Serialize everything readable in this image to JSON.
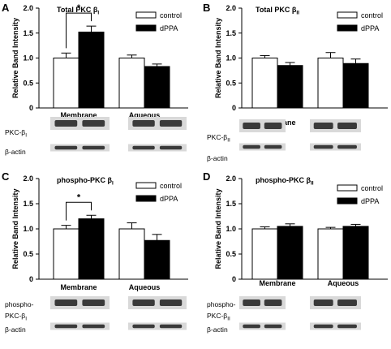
{
  "chart_data": [
    {
      "panel_letter": "A",
      "type": "bar",
      "title": "Total PKC β",
      "title_sub": "I",
      "ylabel": "Relative Band Intensity",
      "ylim": [
        0,
        2.0
      ],
      "yticks": [
        "0",
        "0.5",
        "1.0",
        "1.5",
        "2.0"
      ],
      "categories": [
        "Membrane",
        "Aqueous"
      ],
      "series": [
        {
          "name": "control",
          "values": [
            1.0,
            1.0
          ],
          "errors": [
            0.1,
            0.06
          ]
        },
        {
          "name": "dPPA",
          "values": [
            1.52,
            0.83
          ],
          "errors": [
            0.12,
            0.05
          ]
        }
      ],
      "significance": "*",
      "blot_labels": [
        {
          "text": "PKC-β",
          "sub": "I"
        },
        {
          "text": "β-actin",
          "sub": ""
        }
      ]
    },
    {
      "panel_letter": "B",
      "type": "bar",
      "title": "Total PKC β",
      "title_sub": "II",
      "ylabel": "Relative Band Intensity",
      "ylim": [
        0,
        2.0
      ],
      "yticks": [
        "0",
        "0.5",
        "1.0",
        "1.5",
        "2.0"
      ],
      "categories": [
        "Membrane",
        "Aqueous"
      ],
      "series": [
        {
          "name": "control",
          "values": [
            1.0,
            1.0
          ],
          "errors": [
            0.05,
            0.11
          ]
        },
        {
          "name": "dPPA",
          "values": [
            0.85,
            0.89
          ],
          "errors": [
            0.06,
            0.09
          ]
        }
      ],
      "significance": "",
      "blot_labels": [
        {
          "text": "PKC-β",
          "sub": "II"
        },
        {
          "text": "β-actin",
          "sub": ""
        }
      ]
    },
    {
      "panel_letter": "C",
      "type": "bar",
      "title": "phospho-PKC β",
      "title_sub": "I",
      "ylabel": "Relative Band Intensity",
      "ylim": [
        0,
        2.0
      ],
      "yticks": [
        "0",
        "0.5",
        "1.0",
        "1.5",
        "2.0"
      ],
      "categories": [
        "Membrane",
        "Aqueous"
      ],
      "series": [
        {
          "name": "control",
          "values": [
            1.0,
            1.0
          ],
          "errors": [
            0.07,
            0.12
          ]
        },
        {
          "name": "dPPA",
          "values": [
            1.2,
            0.77
          ],
          "errors": [
            0.07,
            0.12
          ]
        }
      ],
      "significance": "*",
      "blot_labels": [
        {
          "text": "phospho-",
          "sub": ""
        },
        {
          "text": "PKC-β",
          "sub": "I"
        },
        {
          "text": "β-actin",
          "sub": ""
        }
      ]
    },
    {
      "panel_letter": "D",
      "type": "bar",
      "title": "phospho-PKC β",
      "title_sub": "II",
      "ylabel": "Relative Band Intensity",
      "ylim": [
        0,
        2.0
      ],
      "yticks": [
        "0",
        "0.5",
        "1.0",
        "1.5",
        "2.0"
      ],
      "categories": [
        "Membrane",
        "Aqueous"
      ],
      "series": [
        {
          "name": "control",
          "values": [
            1.0,
            1.0
          ],
          "errors": [
            0.04,
            0.03
          ]
        },
        {
          "name": "dPPA",
          "values": [
            1.05,
            1.05
          ],
          "errors": [
            0.05,
            0.04
          ]
        }
      ],
      "significance": "",
      "blot_labels": [
        {
          "text": "phospho-",
          "sub": ""
        },
        {
          "text": "PKC-β",
          "sub": "II"
        },
        {
          "text": "β-actin",
          "sub": ""
        }
      ]
    }
  ],
  "colors": {
    "control": "#ffffff",
    "dPPA": "#000000",
    "axis": "#000000"
  }
}
